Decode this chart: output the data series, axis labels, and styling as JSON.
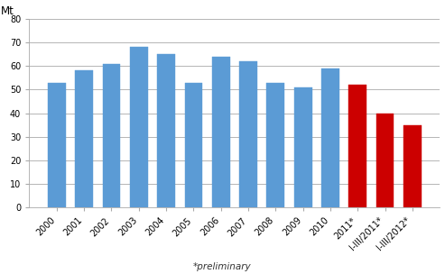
{
  "categories": [
    "2000",
    "2001",
    "2002",
    "2003",
    "2004",
    "2005",
    "2006",
    "2007",
    "2008",
    "2009",
    "2010",
    "2011*",
    "I-III/2011*",
    "I-III/2012*"
  ],
  "values": [
    53,
    58,
    61,
    68,
    65,
    53,
    64,
    62,
    53,
    51,
    59,
    52,
    40,
    35
  ],
  "bar_colors": [
    "#5b9bd5",
    "#5b9bd5",
    "#5b9bd5",
    "#5b9bd5",
    "#5b9bd5",
    "#5b9bd5",
    "#5b9bd5",
    "#5b9bd5",
    "#5b9bd5",
    "#5b9bd5",
    "#5b9bd5",
    "#cc0000",
    "#cc0000",
    "#cc0000"
  ],
  "ylim": [
    0,
    80
  ],
  "yticks": [
    0,
    10,
    20,
    30,
    40,
    50,
    60,
    70,
    80
  ],
  "xlabel_note": "*preliminary",
  "ylabel_text": "Mt",
  "background_color": "#ffffff",
  "grid_color": "#aaaaaa",
  "tick_label_fontsize": 7,
  "note_fontsize": 7.5,
  "ylabel_fontsize": 8.5,
  "bar_width": 0.65
}
